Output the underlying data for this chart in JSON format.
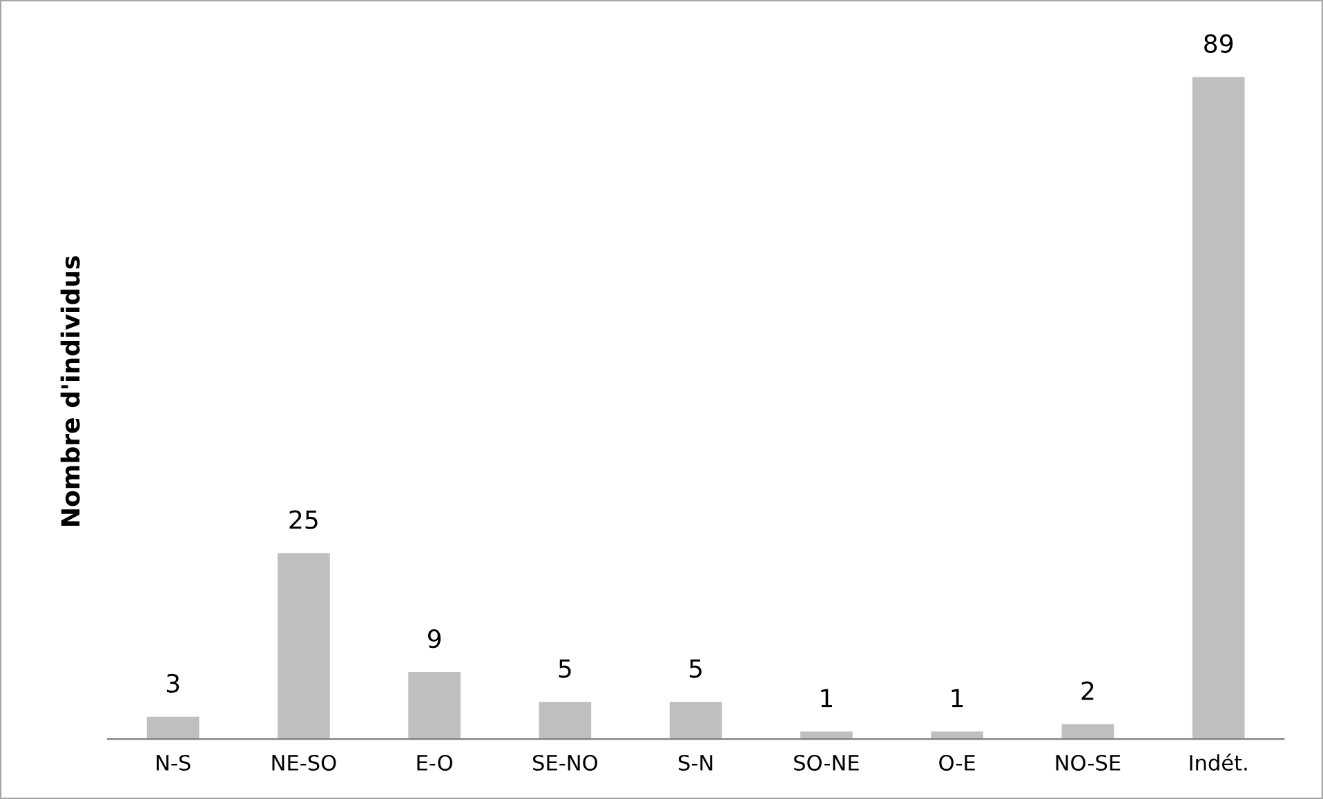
{
  "chart_data": {
    "type": "bar",
    "ylabel": "Nombre d'individus",
    "categories": [
      "N-S",
      "NE-SO",
      "E-O",
      "SE-NO",
      "S-N",
      "SO-NE",
      "O-E",
      "NO-SE",
      "Indét."
    ],
    "values": [
      3,
      25,
      9,
      5,
      5,
      1,
      1,
      2,
      89
    ],
    "color": "#bfbfc1",
    "data_labels": true,
    "tick_labels": "x"
  }
}
